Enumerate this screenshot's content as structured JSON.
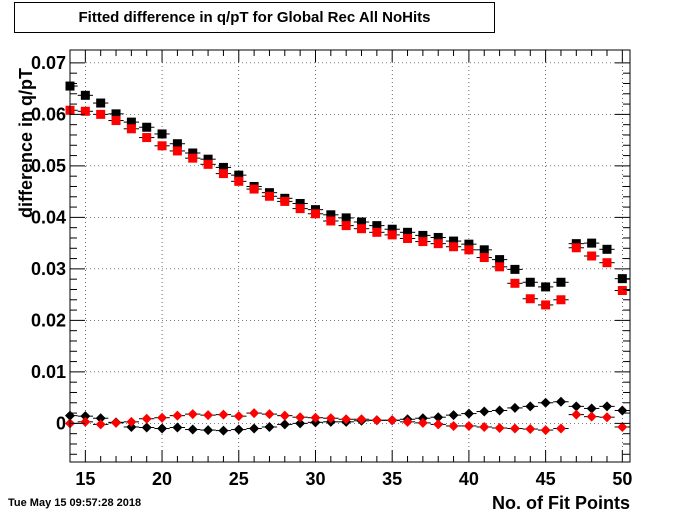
{
  "chart_data": {
    "type": "scatter",
    "title": "Fitted difference in q/pT for Global Rec All NoHits",
    "xlabel": "No. of Fit Points",
    "ylabel": "difference in q/pT",
    "xlim": [
      14,
      50.5
    ],
    "ylim": [
      -0.0075,
      0.0725
    ],
    "x_ticks": [
      15,
      20,
      25,
      30,
      35,
      40,
      45,
      50
    ],
    "y_ticks": [
      0,
      0.01,
      0.02,
      0.03,
      0.04,
      0.05,
      0.06,
      0.07
    ],
    "x_tick_labels": [
      "15",
      "20",
      "25",
      "30",
      "35",
      "40",
      "45",
      "50"
    ],
    "y_tick_labels": [
      "0",
      "0.01",
      "0.02",
      "0.03",
      "0.04",
      "0.05",
      "0.06",
      "0.07"
    ],
    "grid": true,
    "x": [
      14,
      15,
      16,
      17,
      18,
      19,
      20,
      21,
      22,
      23,
      24,
      25,
      26,
      27,
      28,
      29,
      30,
      31,
      32,
      33,
      34,
      35,
      36,
      37,
      38,
      39,
      40,
      41,
      42,
      43,
      44,
      45,
      46,
      47,
      48,
      49,
      50
    ],
    "series": [
      {
        "color": "#000000",
        "marker": "square",
        "values": [
          0.0655,
          0.0637,
          0.0622,
          0.0601,
          0.0585,
          0.0575,
          0.0562,
          0.0543,
          0.0525,
          0.0513,
          0.0497,
          0.0482,
          0.046,
          0.0448,
          0.0437,
          0.0427,
          0.0415,
          0.0405,
          0.0399,
          0.0391,
          0.0384,
          0.0377,
          0.0371,
          0.0365,
          0.0361,
          0.0354,
          0.0348,
          0.0337,
          0.0318,
          0.0299,
          0.0274,
          0.0265,
          0.0274,
          0.0349,
          0.035,
          0.0338,
          0.0281
        ]
      },
      {
        "color": "#ff0000",
        "marker": "square",
        "values": [
          0.0608,
          0.0606,
          0.06,
          0.0588,
          0.0572,
          0.0555,
          0.0539,
          0.0529,
          0.0515,
          0.0503,
          0.0485,
          0.047,
          0.0455,
          0.0441,
          0.0431,
          0.0417,
          0.0407,
          0.0393,
          0.0384,
          0.0378,
          0.0371,
          0.0366,
          0.0359,
          0.0353,
          0.0349,
          0.0343,
          0.0337,
          0.0322,
          0.0304,
          0.0272,
          0.0242,
          0.023,
          0.024,
          0.0341,
          0.0325,
          0.0312,
          0.0258
        ]
      },
      {
        "color": "#000000",
        "marker": "diamond",
        "values": [
          0.0015,
          0.0014,
          0.001,
          0.0002,
          -0.0007,
          -0.0008,
          -0.001,
          -0.0008,
          -0.0012,
          -0.0013,
          -0.0014,
          -0.0012,
          -0.001,
          -0.0007,
          -0.0002,
          0.0,
          0.0002,
          0.0003,
          0.0003,
          0.0005,
          0.0006,
          0.0006,
          0.0008,
          0.001,
          0.0012,
          0.0016,
          0.0019,
          0.0023,
          0.0025,
          0.003,
          0.0033,
          0.004,
          0.0042,
          0.0033,
          0.0029,
          0.0033,
          0.0025
        ]
      },
      {
        "color": "#ff0000",
        "marker": "diamond",
        "values": [
          0.0,
          0.0003,
          -0.0002,
          0.0001,
          0.0003,
          0.0009,
          0.0011,
          0.0015,
          0.0018,
          0.0016,
          0.0017,
          0.0014,
          0.002,
          0.0018,
          0.0015,
          0.0012,
          0.0011,
          0.001,
          0.0008,
          0.0008,
          0.0006,
          0.0006,
          0.0003,
          0.0001,
          -0.0002,
          -0.0005,
          -0.0005,
          -0.0007,
          -0.0009,
          -0.001,
          -0.0011,
          -0.0013,
          -0.001,
          0.0017,
          0.0013,
          0.0012,
          -0.0007
        ]
      }
    ]
  },
  "footer": {
    "timestamp": "Tue May 15 09:57:28 2018"
  }
}
